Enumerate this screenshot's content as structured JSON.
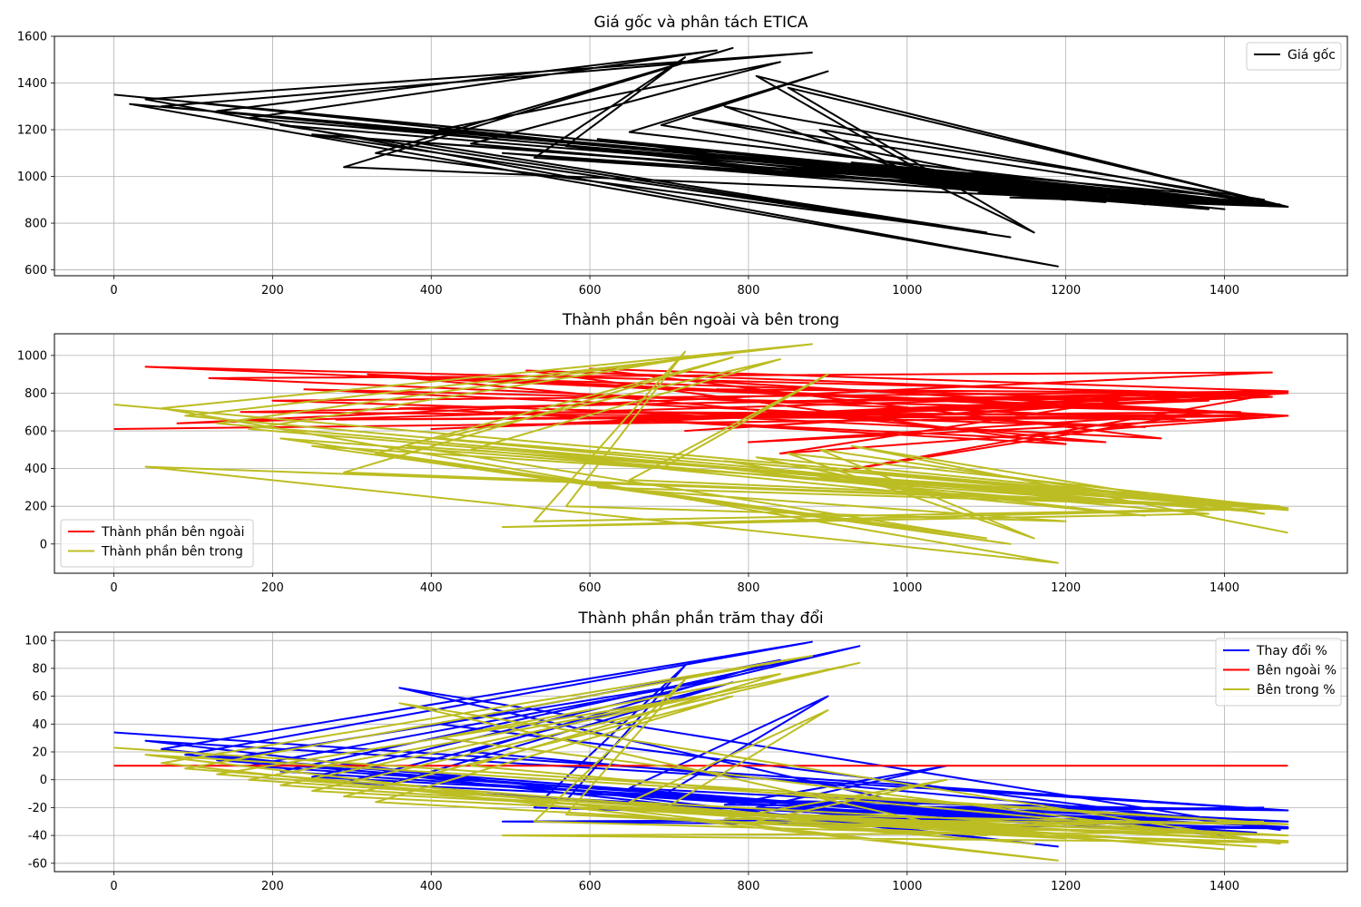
{
  "chart_data": [
    {
      "type": "line",
      "title": "Giá gốc và phân tách ETICA",
      "xlim": [
        -75,
        1555
      ],
      "ylim": [
        575,
        1600
      ],
      "xticks": [
        0,
        200,
        400,
        600,
        800,
        1000,
        1200,
        1400
      ],
      "yticks": [
        600,
        800,
        1000,
        1200,
        1400,
        1600
      ],
      "grid": true,
      "legend": "top-right",
      "series": [
        {
          "name": "Giá gốc",
          "color": "#000000",
          "x": [
            0,
            1480,
            20,
            1190,
            40,
            880,
            60,
            1400,
            90,
            1480,
            130,
            760,
            170,
            1440,
            210,
            1130,
            250,
            1480,
            290,
            780,
            330,
            1100,
            370,
            1470,
            410,
            840,
            450,
            1380,
            490,
            1480,
            530,
            720,
            570,
            1200,
            610,
            1480,
            650,
            900,
            690,
            1300,
            730,
            1480,
            770,
            1050,
            810,
            1480,
            850,
            1160,
            890,
            1450,
            930,
            1480,
            970,
            1330,
            1010,
            1480,
            1050,
            1250,
            1090,
            1480,
            1130,
            1480
          ],
          "y": [
            1350,
            870,
            1310,
            615,
            1330,
            1530,
            1300,
            860,
            1320,
            870,
            1280,
            1540,
            1250,
            880,
            1220,
            740,
            1180,
            870,
            1040,
            1550,
            1100,
            760,
            1150,
            880,
            1200,
            1490,
            1140,
            860,
            1100,
            870,
            1080,
            1510,
            1130,
            900,
            1160,
            870,
            1190,
            1450,
            1220,
            880,
            1250,
            870,
            1300,
            960,
            1430,
            870,
            1380,
            760,
            1200,
            900,
            1060,
            870,
            1000,
            880,
            980,
            870,
            950,
            890,
            930,
            870,
            910,
            870
          ]
        }
      ]
    },
    {
      "type": "line",
      "title": "Thành phần bên ngoài và bên trong",
      "xlim": [
        -75,
        1555
      ],
      "ylim": [
        -155,
        1115
      ],
      "xticks": [
        0,
        200,
        400,
        600,
        800,
        1000,
        1200,
        1400
      ],
      "yticks": [
        0,
        200,
        400,
        600,
        800,
        1000
      ],
      "grid": true,
      "legend": "bottom-left",
      "series": [
        {
          "name": "Thành phần bên ngoài",
          "color": "#ff0000",
          "x": [
            0,
            1480,
            40,
            1400,
            80,
            1460,
            120,
            1350,
            160,
            1480,
            200,
            1300,
            240,
            1420,
            280,
            1480,
            320,
            1250,
            360,
            1480,
            400,
            1380,
            440,
            1480,
            480,
            1200,
            520,
            1460,
            560,
            1480,
            600,
            1320,
            640,
            1480,
            680,
            1230,
            720,
            1480,
            760,
            1400,
            800,
            1480,
            840,
            1280,
            880,
            1480,
            920,
            1350
          ],
          "y": [
            610,
            680,
            940,
            800,
            640,
            910,
            880,
            660,
            700,
            810,
            760,
            620,
            820,
            700,
            660,
            680,
            900,
            540,
            720,
            800,
            610,
            760,
            880,
            680,
            700,
            530,
            920,
            780,
            640,
            810,
            930,
            560,
            700,
            680,
            880,
            740,
            600,
            800,
            820,
            700,
            540,
            680,
            480,
            770,
            760,
            810,
            390,
            680
          ]
        },
        {
          "name": "Thành phần bên trong",
          "color": "#bcbd22",
          "x": [
            0,
            1480,
            40,
            1190,
            60,
            880,
            90,
            1400,
            130,
            760,
            170,
            1440,
            210,
            1130,
            250,
            1480,
            290,
            780,
            330,
            1100,
            370,
            1470,
            410,
            840,
            450,
            1380,
            490,
            1480,
            530,
            720,
            570,
            1200,
            610,
            1480,
            650,
            900,
            690,
            1300,
            730,
            1480,
            770,
            1050,
            810,
            1480,
            850,
            1160,
            890,
            1450,
            930,
            1480
          ],
          "y": [
            740,
            190,
            410,
            -100,
            720,
            1060,
            680,
            180,
            640,
            1010,
            610,
            170,
            560,
            0,
            520,
            190,
            380,
            990,
            480,
            30,
            520,
            200,
            560,
            980,
            500,
            160,
            90,
            190,
            120,
            1020,
            200,
            120,
            300,
            190,
            340,
            900,
            400,
            150,
            420,
            180,
            440,
            250,
            460,
            190,
            480,
            30,
            500,
            160,
            520,
            60
          ]
        }
      ]
    },
    {
      "type": "line",
      "title": "Thành phần phần trăm thay đổi",
      "xlim": [
        -75,
        1555
      ],
      "ylim": [
        -66,
        106
      ],
      "xticks": [
        0,
        200,
        400,
        600,
        800,
        1000,
        1200,
        1400
      ],
      "yticks": [
        -60,
        -40,
        -20,
        0,
        20,
        40,
        60,
        80,
        100
      ],
      "grid": true,
      "legend": "top-right",
      "series": [
        {
          "name": "Thay đổi %",
          "color": "#0000ff",
          "x": [
            0,
            1480,
            40,
            1190,
            60,
            880,
            90,
            1400,
            130,
            760,
            170,
            1440,
            210,
            940,
            250,
            1480,
            290,
            780,
            330,
            1100,
            360,
            1470,
            410,
            840,
            450,
            1380,
            490,
            1480,
            530,
            720,
            570,
            1200,
            610,
            1480,
            650,
            900,
            690,
            1300,
            730,
            1480,
            770,
            1050,
            810,
            1480,
            850,
            1160,
            890,
            1450
          ],
          "y": [
            34,
            -22,
            28,
            -48,
            22,
            99,
            18,
            -40,
            14,
            72,
            10,
            -38,
            6,
            96,
            2,
            -34,
            -2,
            70,
            -6,
            -30,
            66,
            -36,
            40,
            86,
            20,
            -28,
            -30,
            -35,
            -20,
            82,
            -15,
            -32,
            -10,
            -30,
            -6,
            60,
            -12,
            -26,
            -14,
            -22,
            -18,
            10,
            -20,
            -30,
            -22,
            -36,
            -24,
            -20
          ]
        },
        {
          "name": "Bên ngoài %",
          "color": "#ff0000",
          "x": [
            0,
            1480
          ],
          "y": [
            10,
            10
          ]
        },
        {
          "name": "Bên trong %",
          "color": "#bcbd22",
          "x": [
            0,
            1480,
            40,
            1190,
            60,
            880,
            90,
            1400,
            130,
            760,
            170,
            1440,
            210,
            940,
            250,
            1480,
            290,
            780,
            330,
            1100,
            360,
            1470,
            410,
            840,
            450,
            1380,
            490,
            1480,
            530,
            720,
            570,
            1200,
            610,
            1480,
            650,
            900,
            690,
            1300,
            730,
            1480,
            770,
            1050,
            810,
            1480,
            850,
            1160,
            890,
            1450
          ],
          "y": [
            23,
            -32,
            18,
            -58,
            12,
            89,
            8,
            -50,
            4,
            62,
            0,
            -48,
            -4,
            84,
            -8,
            -44,
            -12,
            60,
            -16,
            -40,
            55,
            -46,
            30,
            76,
            10,
            -38,
            -40,
            -45,
            -30,
            72,
            -25,
            -42,
            -20,
            -40,
            -16,
            50,
            -22,
            -36,
            -24,
            -32,
            -28,
            0,
            -30,
            -40,
            -32,
            -46,
            -34,
            -30
          ]
        }
      ]
    }
  ]
}
